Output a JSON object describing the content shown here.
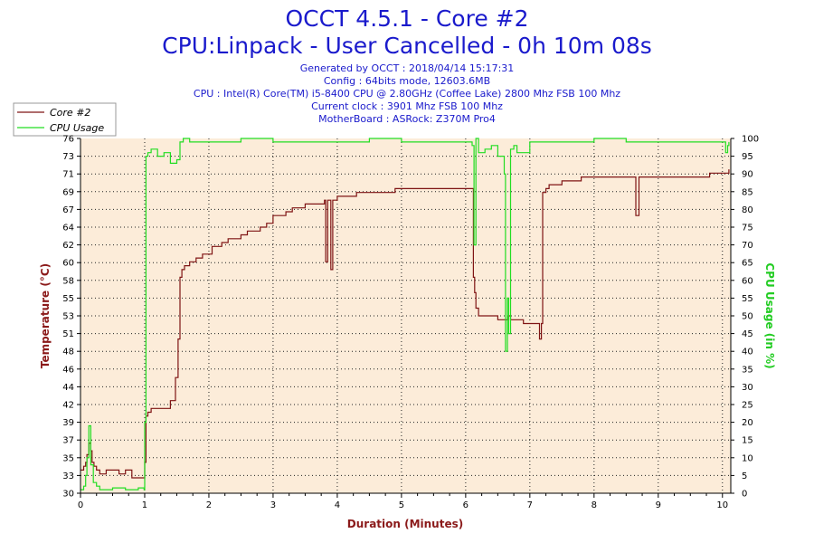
{
  "header": {
    "title": "OCCT 4.5.1 - Core #2",
    "subtitle": "CPU:Linpack - User Cancelled - 0h 10m 08s",
    "info_lines": [
      "Generated by OCCT : 2018/04/14 15:17:31",
      "Config : 64bits mode, 12603.6MB",
      "CPU : Intel(R) Core(TM) i5-8400 CPU @ 2.80GHz (Coffee Lake) 2800 Mhz FSB 100 Mhz",
      "Current clock : 3901 Mhz FSB 100 Mhz",
      "MotherBoard : ASRock: Z370M Pro4"
    ]
  },
  "colors": {
    "title": "#1a1acc",
    "background": "#fcecd9",
    "temperature": "#7f1414",
    "cpu_usage": "#22dd22",
    "axis_left": "#8b1a1a",
    "axis_right": "#22cc22"
  },
  "chart_data": {
    "type": "line",
    "title": "OCCT 4.5.1 - Core #2",
    "xlabel": "Duration (Minutes)",
    "ylabel_left": "Temperature (°C)",
    "ylabel_right": "CPU Usage (in %)",
    "xlim": [
      0,
      10.13
    ],
    "ylim_left": [
      30,
      76
    ],
    "ylim_right": [
      0,
      100
    ],
    "x_ticks": [
      "0",
      "1",
      "2",
      "3",
      "4",
      "5",
      "6",
      "7",
      "8",
      "9",
      "10"
    ],
    "y_left_ticks": [
      "30",
      "33",
      "35",
      "37",
      "39",
      "42",
      "44",
      "46",
      "48",
      "51",
      "53",
      "55",
      "58",
      "60",
      "62",
      "64",
      "67",
      "69",
      "71",
      "73",
      "76"
    ],
    "y_right_ticks": [
      "0",
      "5",
      "10",
      "15",
      "20",
      "25",
      "30",
      "35",
      "40",
      "45",
      "50",
      "55",
      "60",
      "65",
      "70",
      "75",
      "80",
      "85",
      "90",
      "95",
      "100"
    ],
    "grid": true,
    "legend_position": "top-left",
    "series": [
      {
        "name": "Core #2",
        "axis": "left",
        "x": [
          0,
          0.05,
          0.08,
          0.1,
          0.13,
          0.16,
          0.18,
          0.21,
          0.25,
          0.3,
          0.4,
          0.5,
          0.6,
          0.7,
          0.8,
          0.9,
          0.99,
          1.0,
          1.02,
          1.05,
          1.1,
          1.2,
          1.3,
          1.4,
          1.48,
          1.52,
          1.55,
          1.58,
          1.62,
          1.7,
          1.8,
          1.9,
          2.0,
          2.05,
          2.1,
          2.2,
          2.3,
          2.4,
          2.5,
          2.6,
          2.7,
          2.8,
          2.9,
          3.0,
          3.1,
          3.2,
          3.3,
          3.4,
          3.5,
          3.6,
          3.7,
          3.8,
          3.82,
          3.85,
          3.9,
          3.93,
          4.0,
          4.1,
          4.2,
          4.3,
          4.4,
          4.5,
          4.6,
          4.7,
          4.8,
          4.9,
          5.0,
          5.1,
          5.2,
          5.3,
          5.4,
          5.5,
          5.6,
          5.7,
          5.8,
          5.9,
          6.0,
          6.1,
          6.12,
          6.14,
          6.16,
          6.2,
          6.3,
          6.4,
          6.5,
          6.6,
          6.63,
          6.66,
          6.7,
          6.8,
          6.9,
          7.0,
          7.1,
          7.15,
          7.18,
          7.2,
          7.25,
          7.3,
          7.4,
          7.5,
          7.6,
          7.7,
          7.8,
          7.9,
          8.0,
          8.2,
          8.4,
          8.6,
          8.65,
          8.7,
          8.8,
          9.0,
          9.2,
          9.4,
          9.6,
          9.8,
          9.9,
          10.0,
          10.1
        ],
        "values": [
          33,
          33.5,
          34,
          35,
          36.5,
          35.5,
          34,
          33.5,
          33,
          32.5,
          33,
          33,
          32.5,
          33,
          32,
          32,
          32,
          34,
          40,
          40.5,
          41,
          41,
          41,
          42,
          45,
          50,
          58,
          59,
          59.5,
          60,
          60.5,
          61,
          61,
          62,
          62,
          62.5,
          63,
          63,
          63.5,
          64,
          64,
          64.5,
          65,
          66,
          66,
          66.5,
          67,
          67,
          67.5,
          67.5,
          67.5,
          68,
          60,
          68,
          59,
          68,
          68.5,
          68.5,
          68.5,
          69,
          69,
          69,
          69,
          69,
          69,
          69.5,
          69.5,
          69.5,
          69.5,
          69.5,
          69.5,
          69.5,
          69.5,
          69.5,
          69.5,
          69.5,
          69.5,
          69.5,
          58,
          56,
          54,
          53,
          53,
          53,
          52.5,
          52.5,
          52.5,
          53,
          52.5,
          52.5,
          52,
          52,
          52,
          50,
          52,
          69,
          69.5,
          70,
          70,
          70.5,
          70.5,
          70.5,
          71,
          71,
          71,
          71,
          71,
          71,
          66,
          71,
          71,
          71,
          71,
          71,
          71,
          71.5,
          71.5,
          71.5,
          72
        ]
      },
      {
        "name": "CPU Usage",
        "axis": "right",
        "x": [
          0,
          0.05,
          0.08,
          0.1,
          0.13,
          0.16,
          0.2,
          0.25,
          0.3,
          0.5,
          0.7,
          0.9,
          0.99,
          1.0,
          1.02,
          1.05,
          1.1,
          1.2,
          1.3,
          1.4,
          1.5,
          1.55,
          1.6,
          1.7,
          2.0,
          2.5,
          3.0,
          3.5,
          4.0,
          4.5,
          5.0,
          5.5,
          6.0,
          6.1,
          6.13,
          6.16,
          6.2,
          6.3,
          6.4,
          6.5,
          6.6,
          6.62,
          6.65,
          6.67,
          6.7,
          6.75,
          6.8,
          7.0,
          7.5,
          8.0,
          8.5,
          9.0,
          9.5,
          10.0,
          10.05,
          10.08,
          10.1
        ],
        "values": [
          1,
          2,
          5,
          10,
          19,
          8,
          3,
          2,
          1,
          1.5,
          1,
          1.5,
          1,
          20,
          95,
          96,
          97,
          95,
          96,
          93,
          94,
          99,
          100,
          99,
          99,
          100,
          99,
          99,
          99,
          100,
          99,
          99,
          99,
          98,
          70,
          100,
          96,
          97,
          98,
          95,
          90,
          40,
          55,
          45,
          97,
          98,
          96,
          99,
          99,
          100,
          99,
          99,
          99,
          99,
          96,
          98,
          99
        ]
      }
    ]
  }
}
